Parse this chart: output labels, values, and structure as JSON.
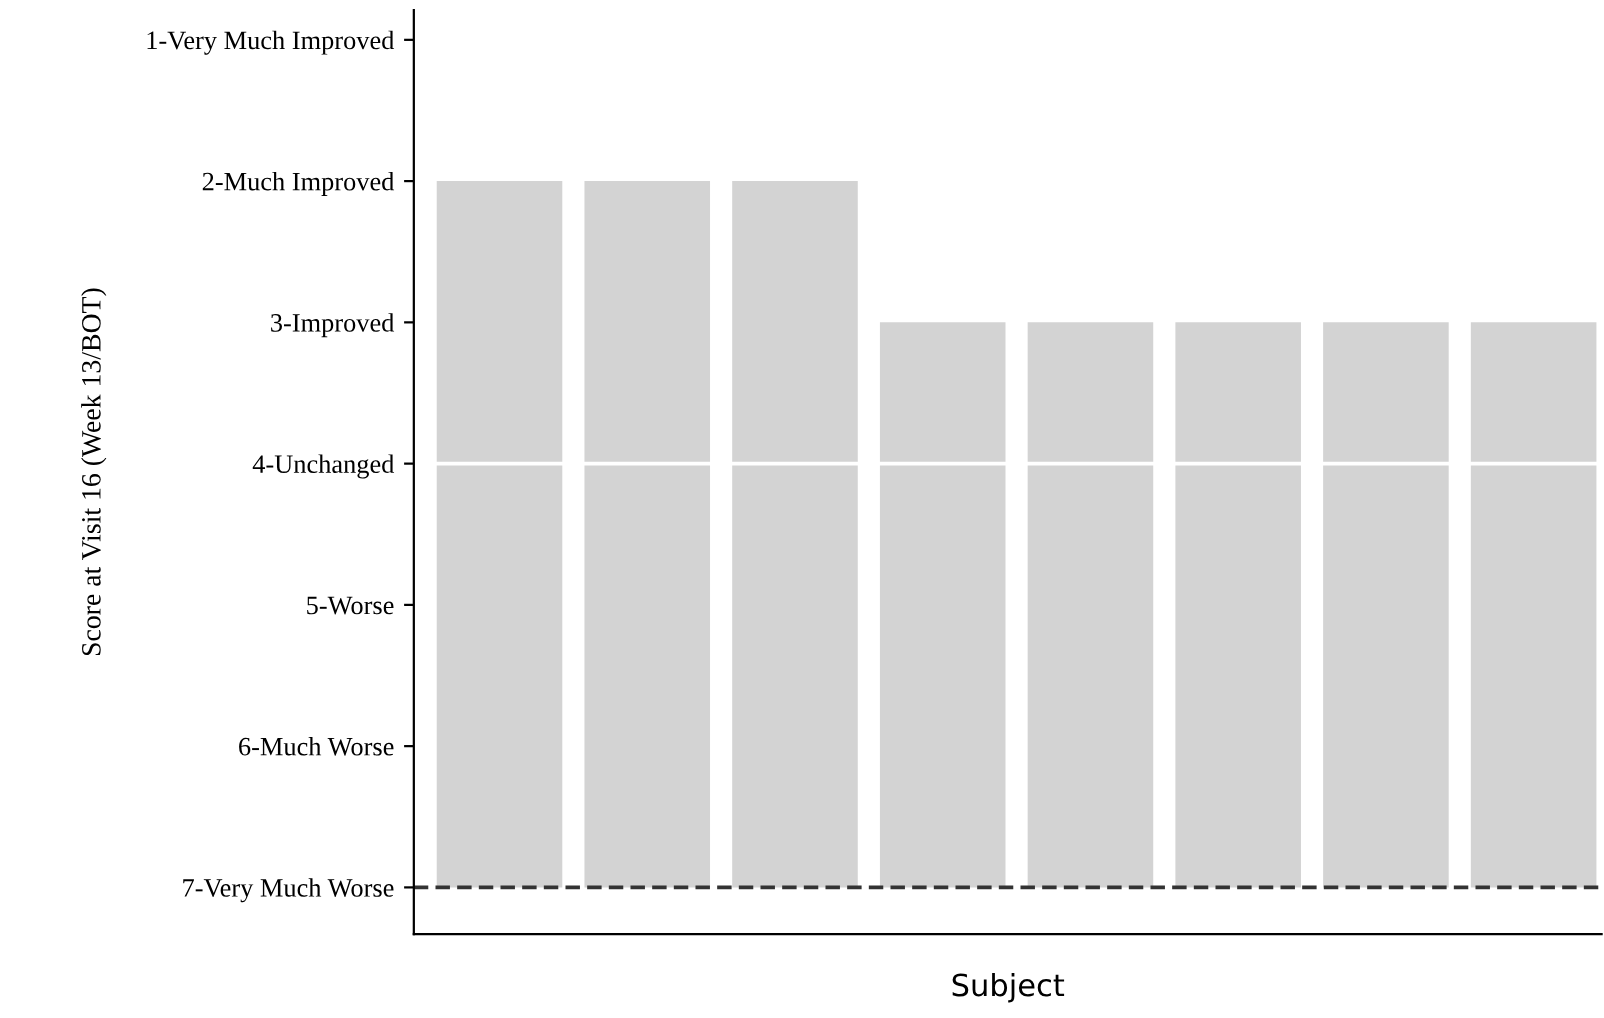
{
  "chart_data": {
    "type": "bar",
    "categories": [
      null,
      null,
      null,
      null,
      null,
      null,
      null,
      null
    ],
    "base": [
      7,
      7,
      7,
      7,
      7,
      7,
      7,
      7
    ],
    "values": [
      -5,
      -5,
      -5,
      -4,
      -4,
      -4,
      -4,
      -4
    ],
    "color": "#d3d3d3",
    "xlabel": "Subject",
    "ylabel": "Score at Visit 16 (Week 13/BOT)",
    "ylim": [
      7.33,
      0.79
    ],
    "yticks": [
      {
        "value": 1,
        "label": "1-Very Much Improved"
      },
      {
        "value": 2,
        "label": "2-Much Improved"
      },
      {
        "value": 3,
        "label": "3-Improved"
      },
      {
        "value": 4,
        "label": "4-Unchanged"
      },
      {
        "value": 5,
        "label": "5-Worse"
      },
      {
        "value": 6,
        "label": "6-Much Worse"
      },
      {
        "value": 7,
        "label": "7-Very Much Worse"
      }
    ],
    "ref_lines": [
      {
        "axis": "y",
        "value": 4,
        "label": null,
        "color": "#ffffff",
        "line_style": "solid"
      },
      {
        "axis": "y",
        "value": 7,
        "label": null,
        "color": "#333333",
        "line_style": "dashed"
      }
    ],
    "tick_labels": "y",
    "grid": false
  }
}
